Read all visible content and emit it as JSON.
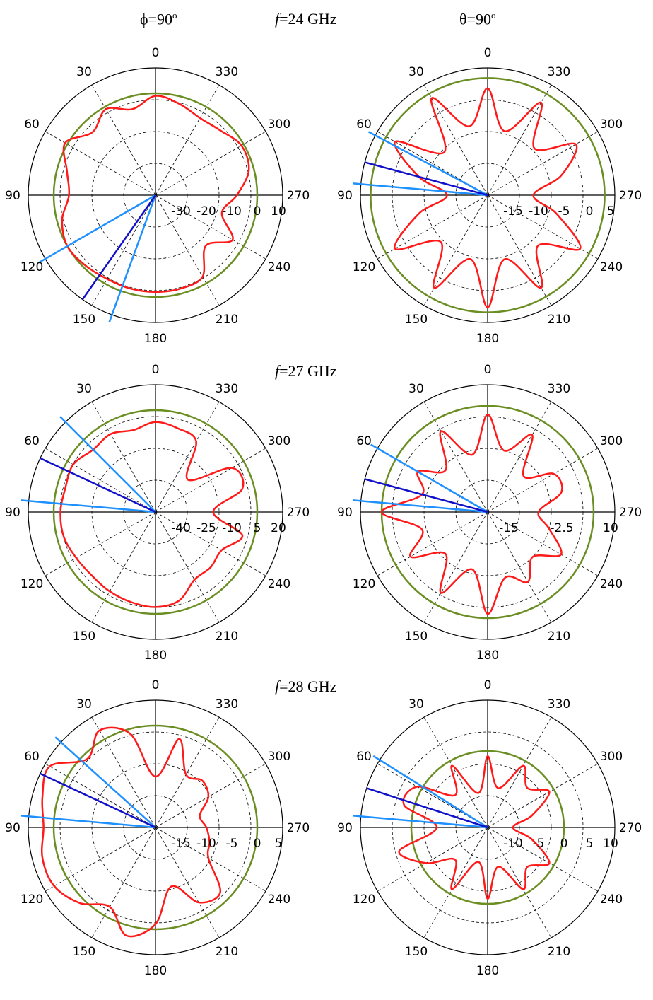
{
  "headers": {
    "left_symbol": "ϕ",
    "left_eq": "=90",
    "left_sup": "o",
    "right_symbol": "θ",
    "right_eq": "=90",
    "right_sup": "o",
    "f_italic": "f",
    "freq_24": "=24 GHz",
    "freq_27": "=27 GHz",
    "freq_28": "=28 GHz"
  },
  "colors": {
    "pattern": "#ff1a1a",
    "reference_circle": "#6b8e23",
    "beam_main": "#1010c8",
    "beam_edge": "#1e90ff",
    "grid_dashed": "#000000"
  },
  "chart_data": [
    {
      "type": "polar",
      "row": "f=24 GHz",
      "plane": "phi=90",
      "angular_ticks": [
        "0",
        "30",
        "60",
        "90",
        "120",
        "150",
        "180",
        "210",
        "240",
        "270",
        "300",
        "330"
      ],
      "radial_ticks": [
        "-30",
        "-20",
        "-10",
        "0",
        "10"
      ],
      "rlim": [
        -40,
        10
      ],
      "reference_level": 0,
      "beam_deg": {
        "main": 145,
        "edges": [
          120,
          160
        ]
      },
      "pattern": {
        "angles": [
          0,
          15,
          30,
          45,
          60,
          75,
          90,
          105,
          120,
          135,
          150,
          165,
          180,
          195,
          210,
          225,
          240,
          255,
          270,
          285,
          300,
          315,
          330,
          345
        ],
        "values": [
          -1,
          -5,
          -1,
          -5,
          1,
          -4,
          -6,
          -2,
          0,
          -1,
          -2,
          -2,
          -2,
          -2,
          -3,
          -12,
          -5,
          -13,
          -8,
          -2,
          -1,
          -4,
          -5,
          -3
        ]
      }
    },
    {
      "type": "polar",
      "row": "f=24 GHz",
      "plane": "theta=90",
      "angular_ticks": [
        "0",
        "30",
        "60",
        "90",
        "120",
        "150",
        "180",
        "210",
        "240",
        "270",
        "300",
        "330"
      ],
      "radial_ticks": [
        "-15",
        "-10",
        "-5",
        "0",
        "5"
      ],
      "rlim": [
        -20,
        5
      ],
      "reference_level": 3,
      "beam_deg": {
        "main": 75,
        "edges": [
          62,
          85
        ]
      },
      "pattern": {
        "angles": [
          0,
          15,
          30,
          45,
          60,
          75,
          90,
          105,
          120,
          135,
          150,
          165,
          180,
          195,
          210,
          225,
          240,
          255,
          270,
          285,
          300,
          315,
          330,
          345
        ],
        "values": [
          1,
          -6,
          2,
          -8,
          1,
          -6,
          -12,
          -6,
          1,
          -7,
          1,
          -7,
          2,
          -7,
          1,
          -6,
          1,
          -6,
          -11,
          -5,
          0,
          -7,
          1,
          -7
        ]
      }
    },
    {
      "type": "polar",
      "row": "f=27 GHz",
      "plane": "phi=90",
      "angular_ticks": [
        "0",
        "30",
        "60",
        "90",
        "120",
        "150",
        "180",
        "210",
        "240",
        "270",
        "300",
        "330"
      ],
      "radial_ticks": [
        "-40",
        "-25",
        "-10",
        "5",
        "20"
      ],
      "rlim": [
        -55,
        20
      ],
      "reference_level": 5,
      "beam_deg": {
        "main": 65,
        "edges": [
          45,
          85
        ]
      },
      "pattern": {
        "angles": [
          0,
          15,
          30,
          45,
          60,
          75,
          90,
          105,
          120,
          135,
          150,
          165,
          180,
          195,
          210,
          225,
          240,
          255,
          270,
          285,
          300,
          315,
          330,
          345
        ],
        "values": [
          -2,
          -5,
          -2,
          -3,
          1,
          0,
          1,
          1,
          -1,
          -2,
          -1,
          0,
          1,
          -1,
          -9,
          -9,
          -10,
          -2,
          -21,
          -2,
          -3,
          -28,
          -7,
          -4
        ]
      }
    },
    {
      "type": "polar",
      "row": "f=27 GHz",
      "plane": "theta=90",
      "angular_ticks": [
        "0",
        "30",
        "60",
        "90",
        "120",
        "150",
        "180",
        "210",
        "240",
        "270",
        "300",
        "330"
      ],
      "radial_ticks": [
        "-15",
        "-2.5",
        "10"
      ],
      "rlim": [
        -20,
        10
      ],
      "reference_level": 5,
      "beam_deg": {
        "main": 75,
        "edges": [
          60,
          85
        ]
      },
      "pattern": {
        "angles": [
          0,
          15,
          30,
          45,
          60,
          75,
          90,
          105,
          120,
          135,
          150,
          165,
          180,
          195,
          210,
          225,
          240,
          255,
          270,
          285,
          300,
          315,
          330,
          345
        ],
        "values": [
          3,
          -6,
          2,
          -6,
          -1,
          -4,
          5,
          -4,
          1,
          -6,
          2,
          -6,
          4,
          -4,
          -1,
          -5,
          0,
          -5,
          -8,
          -2,
          -2,
          -8,
          1,
          -5
        ]
      }
    },
    {
      "type": "polar",
      "row": "f=28 GHz",
      "plane": "phi=90",
      "angular_ticks": [
        "0",
        "30",
        "60",
        "90",
        "120",
        "150",
        "180",
        "210",
        "240",
        "270",
        "300",
        "330"
      ],
      "radial_ticks": [
        "-15",
        "-10",
        "-5",
        "0",
        "5"
      ],
      "rlim": [
        -20,
        5
      ],
      "reference_level": 0,
      "beam_deg": {
        "main": 65,
        "edges": [
          48,
          85
        ]
      },
      "pattern": {
        "angles": [
          0,
          15,
          30,
          45,
          60,
          75,
          90,
          105,
          120,
          135,
          150,
          165,
          180,
          195,
          210,
          225,
          240,
          255,
          270,
          285,
          300,
          315,
          330,
          345
        ],
        "values": [
          -10,
          -1,
          2,
          -1,
          4,
          3,
          2,
          3,
          3,
          1,
          -2,
          2,
          -1,
          -8,
          -3,
          -2,
          -8,
          -9,
          -10,
          -11,
          -8,
          -7,
          -8,
          -2
        ]
      }
    },
    {
      "type": "polar",
      "row": "f=28 GHz",
      "plane": "theta=90",
      "angular_ticks": [
        "0",
        "30",
        "60",
        "90",
        "120",
        "150",
        "180",
        "210",
        "240",
        "270",
        "300",
        "330"
      ],
      "radial_ticks": [
        "-10",
        "-5",
        "0",
        "5",
        "10"
      ],
      "rlim": [
        -15,
        10
      ],
      "reference_level": 0,
      "beam_deg": {
        "main": 72,
        "edges": [
          58,
          85
        ]
      },
      "pattern": {
        "angles": [
          0,
          15,
          30,
          45,
          60,
          75,
          90,
          105,
          120,
          135,
          150,
          165,
          180,
          195,
          210,
          225,
          240,
          255,
          270,
          285,
          300,
          315,
          330,
          345
        ],
        "values": [
          -1,
          -8,
          -1,
          -6,
          1,
          2,
          -5,
          3,
          -1,
          -6,
          -1,
          -8,
          -1,
          -7,
          -1,
          -4,
          -1,
          -6,
          -10,
          -6,
          -1,
          -4,
          -1,
          -7
        ]
      }
    }
  ]
}
